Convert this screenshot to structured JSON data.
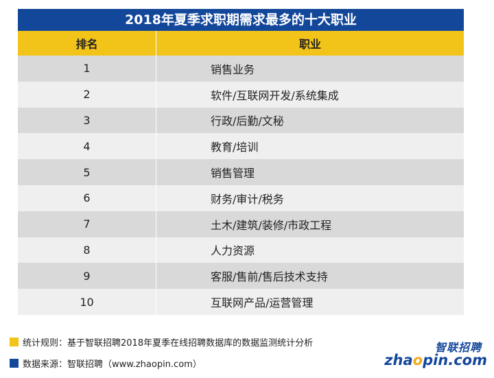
{
  "title": "2018年夏季求职期需求最多的十大职业",
  "headers": {
    "rank": "排名",
    "job": "职业"
  },
  "rows": [
    {
      "rank": "1",
      "job": "销售业务"
    },
    {
      "rank": "2",
      "job": "软件/互联网开发/系统集成"
    },
    {
      "rank": "3",
      "job": "行政/后勤/文秘"
    },
    {
      "rank": "4",
      "job": "教育/培训"
    },
    {
      "rank": "5",
      "job": "销售管理"
    },
    {
      "rank": "6",
      "job": "财务/审计/税务"
    },
    {
      "rank": "7",
      "job": "土木/建筑/装修/市政工程"
    },
    {
      "rank": "8",
      "job": "人力资源"
    },
    {
      "rank": "9",
      "job": "客服/售前/售后技术支持"
    },
    {
      "rank": "10",
      "job": "互联网产品/运营管理"
    }
  ],
  "notes": {
    "rule": "统计规则：基于智联招聘2018年夏季在线招聘数据库的数据监测统计分析",
    "source": "数据来源：智联招聘（www.zhaopin.com）"
  },
  "logo": {
    "cn": "智联招聘",
    "en_pre": "zha",
    "en_o": "o",
    "en_post": "pin.com"
  },
  "colors": {
    "title_bg": "#13479a",
    "header_bg": "#f2c318",
    "row_dark": "#d9d9d9",
    "row_light": "#efefef"
  }
}
